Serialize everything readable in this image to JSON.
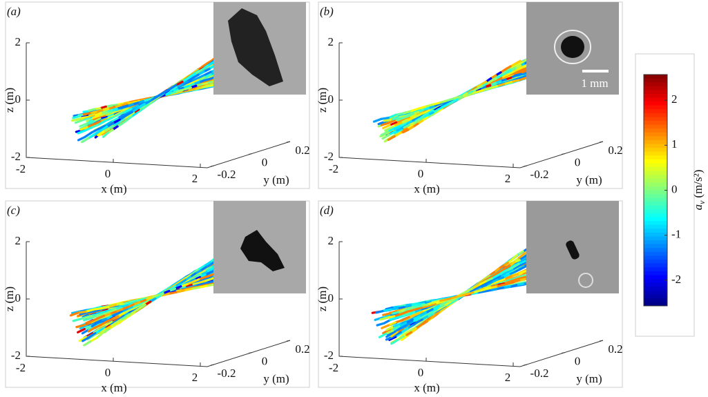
{
  "panels": [
    {
      "label": "(a)",
      "x_label": "x (m)",
      "y_label": "y (m)",
      "z_label": "z (m)",
      "x_ticks": [
        -2,
        0,
        2
      ],
      "y_ticks": [
        -0.2,
        0,
        0.2
      ],
      "z_ticks": [
        -2,
        0,
        2
      ]
    },
    {
      "label": "(b)",
      "x_label": "x (m)",
      "y_label": "y (m)",
      "z_label": "z (m)",
      "x_ticks": [
        -2,
        0,
        2
      ],
      "y_ticks": [
        -0.2,
        0,
        0.2
      ],
      "z_ticks": [
        -2,
        0,
        2
      ],
      "scale_bar": "1 mm"
    },
    {
      "label": "(c)",
      "x_label": "x (m)",
      "y_label": "y (m)",
      "z_label": "z (m)",
      "x_ticks": [
        -2,
        0,
        2
      ],
      "y_ticks": [
        -0.2,
        0,
        0.2
      ],
      "z_ticks": [
        -2,
        0,
        2
      ]
    },
    {
      "label": "(d)",
      "x_label": "x (m)",
      "y_label": "y (m)",
      "z_label": "z (m)",
      "x_ticks": [
        -2,
        0,
        2
      ],
      "y_ticks": [
        -0.2,
        0,
        0.2
      ],
      "z_ticks": [
        -2,
        0,
        2
      ]
    }
  ],
  "colorbar": {
    "symbol": "a",
    "subscript": "v",
    "unit": "(m/s²)",
    "lim": [
      -2.57,
      2.57
    ],
    "ticks": [
      -2,
      -1,
      0,
      1,
      2
    ]
  }
}
